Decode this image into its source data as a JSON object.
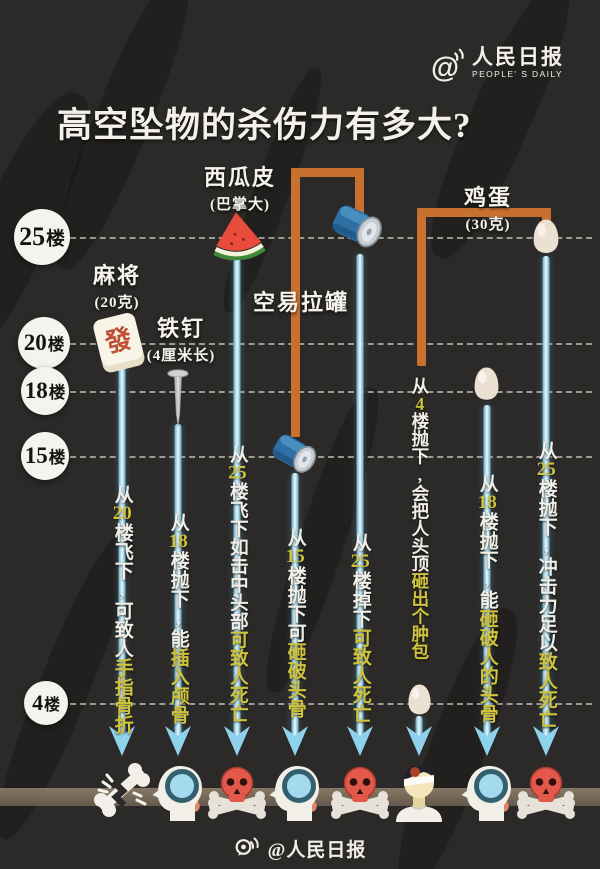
{
  "header": {
    "title": "高空坠物的杀伤力有多大?",
    "logo": {
      "at": "@",
      "name": "人民日报",
      "subtitle": "PEOPLE' S DAILY"
    }
  },
  "floors": [
    {
      "num": "25",
      "unit": "楼"
    },
    {
      "num": "20",
      "unit": "楼"
    },
    {
      "num": "18",
      "unit": "楼"
    },
    {
      "num": "15",
      "unit": "楼"
    },
    {
      "num": "4",
      "unit": "楼"
    }
  ],
  "object_labels": [
    {
      "name": "麻将",
      "sub": "(20克)"
    },
    {
      "name": "铁钉",
      "sub": "(4厘米长)"
    },
    {
      "name": "西瓜皮",
      "sub": "(巴掌大)"
    },
    {
      "name": "空易拉罐",
      "sub": ""
    },
    {
      "name": "鸡蛋",
      "sub": "(30克)"
    }
  ],
  "columns": [
    {
      "object_icon": "mahjong-tile-icon",
      "result_icon": "broken-bone-icon",
      "segments": [
        {
          "t": "从"
        },
        {
          "t": "20",
          "hl": true
        },
        {
          "t": "楼飞下,"
        },
        {
          "t": "可致人"
        },
        {
          "t": "手指骨折",
          "hl": true
        }
      ]
    },
    {
      "object_icon": "nail-icon",
      "result_icon": "skull-crack-icon",
      "segments": [
        {
          "t": "从"
        },
        {
          "t": "18",
          "hl": true
        },
        {
          "t": "楼抛下,"
        },
        {
          "t": "能"
        },
        {
          "t": "插入颅骨",
          "hl": true
        }
      ]
    },
    {
      "object_icon": "watermelon-icon",
      "result_icon": "death-skull-icon",
      "segments": [
        {
          "t": "从"
        },
        {
          "t": "25",
          "hl": true
        },
        {
          "t": "楼飞下如击中头部"
        },
        {
          "t": "可致人死亡",
          "hl": true
        }
      ]
    },
    {
      "object_icon": "can-icon",
      "result_icon": "skull-crack-icon",
      "segments": [
        {
          "t": "从"
        },
        {
          "t": "15",
          "hl": true
        },
        {
          "t": "楼抛下可"
        },
        {
          "t": "砸破头骨",
          "hl": true
        }
      ]
    },
    {
      "object_icon": "can-icon",
      "result_icon": "death-skull-icon",
      "segments": [
        {
          "t": "从"
        },
        {
          "t": "25",
          "hl": true
        },
        {
          "t": "楼掉下"
        },
        {
          "t": "可致人死亡",
          "hl": true
        }
      ]
    },
    {
      "object_icon": "egg-icon",
      "result_icon": "bump-head-icon",
      "segments": [
        {
          "t": "从"
        },
        {
          "t": "4",
          "hl": true
        },
        {
          "t": "楼抛下,"
        },
        {
          "t": "会把人头顶"
        },
        {
          "t": "砸出个肿包",
          "hl": true
        }
      ]
    },
    {
      "object_icon": "egg-icon",
      "result_icon": "skull-crack-icon",
      "segments": [
        {
          "t": "从"
        },
        {
          "t": "18",
          "hl": true
        },
        {
          "t": "楼抛下,"
        },
        {
          "t": "能"
        },
        {
          "t": "砸破人的头骨",
          "hl": true
        }
      ]
    },
    {
      "object_icon": "egg-icon",
      "result_icon": "death-skull-icon",
      "segments": [
        {
          "t": "从"
        },
        {
          "t": "25",
          "hl": true
        },
        {
          "t": "楼抛下,"
        },
        {
          "t": "冲击力足以"
        },
        {
          "t": "致人死亡",
          "hl": true
        }
      ]
    }
  ],
  "footer": {
    "handle": "@人民日报"
  },
  "colors": {
    "background": "#2b2a28",
    "highlight_yellow": "#cfc33e",
    "bracket_orange": "#c8702e",
    "arrow_blue": "#8fd2ec",
    "skull_red": "#e2594b"
  }
}
